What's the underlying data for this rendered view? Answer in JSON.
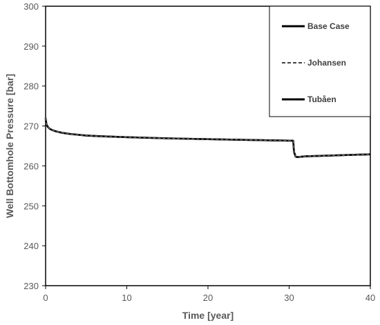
{
  "chart_data": {
    "type": "line",
    "title": "",
    "xlabel": "Time [year]",
    "ylabel": "Well Bottomhole Pressure [bar]",
    "xlim": [
      0,
      40
    ],
    "ylim": [
      230,
      300
    ],
    "xticks": [
      0,
      10,
      20,
      30,
      40
    ],
    "yticks": [
      230,
      240,
      250,
      260,
      270,
      280,
      290,
      300
    ],
    "grid": false,
    "legend_position": "top-right",
    "series": [
      {
        "name": "Base Case",
        "style": "solid",
        "color": "#000000",
        "x": [
          0,
          0.05,
          0.1,
          0.2,
          0.3,
          0.5,
          0.8,
          1.2,
          2,
          3,
          5,
          7,
          10,
          15,
          20,
          25,
          28,
          30.5,
          30.6,
          30.8,
          31,
          32,
          35,
          40
        ],
        "y": [
          272.0,
          271.2,
          270.5,
          270.0,
          269.7,
          269.3,
          269.0,
          268.7,
          268.3,
          268.0,
          267.6,
          267.4,
          267.2,
          266.9,
          266.7,
          266.5,
          266.4,
          266.3,
          263.5,
          262.3,
          262.2,
          262.4,
          262.6,
          262.9
        ]
      },
      {
        "name": "Johansen",
        "style": "dashed",
        "color": "#000000",
        "x": [
          0,
          0.05,
          0.1,
          0.2,
          0.3,
          0.5,
          0.8,
          1.2,
          2,
          3,
          5,
          7,
          10,
          15,
          20,
          25,
          28,
          30.5,
          30.6,
          30.8,
          31,
          32,
          35,
          40
        ],
        "y": [
          272.0,
          271.2,
          270.5,
          270.0,
          269.7,
          269.3,
          269.0,
          268.7,
          268.3,
          268.0,
          267.6,
          267.4,
          267.2,
          266.9,
          266.7,
          266.5,
          266.4,
          266.3,
          263.5,
          262.3,
          262.2,
          262.4,
          262.6,
          262.9
        ]
      },
      {
        "name": "Tubåen",
        "style": "solid",
        "color": "#000000",
        "x": [
          0,
          0.05,
          0.1,
          0.2,
          0.3,
          0.5,
          0.8,
          1.2,
          2,
          3,
          5,
          7,
          10,
          15,
          20,
          25,
          28,
          30.5,
          30.6,
          30.8,
          31,
          32,
          35,
          40
        ],
        "y": [
          272.0,
          271.2,
          270.5,
          270.0,
          269.7,
          269.3,
          269.0,
          268.7,
          268.3,
          268.0,
          267.6,
          267.4,
          267.2,
          266.9,
          266.7,
          266.5,
          266.4,
          266.3,
          263.5,
          262.3,
          262.2,
          262.4,
          262.6,
          262.9
        ]
      }
    ]
  }
}
